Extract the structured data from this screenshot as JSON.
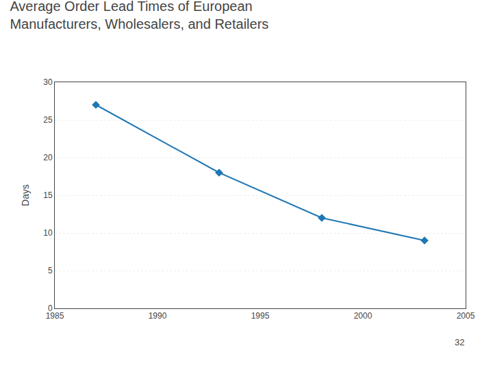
{
  "chart_data": {
    "type": "line",
    "title": "Average Order Lead Times of European\nManufacturers, Wholesalers, and Retailers",
    "ylabel": "Days",
    "x": [
      1987,
      1993,
      1998,
      2003
    ],
    "values": [
      27,
      18,
      12,
      9
    ],
    "xlim": [
      1985,
      2005
    ],
    "ylim": [
      0,
      30
    ],
    "xticks": [
      1985,
      1990,
      1995,
      2000,
      2005
    ],
    "yticks": [
      0,
      5,
      10,
      15,
      20,
      25,
      30
    ],
    "grid": true,
    "marker": "diamond",
    "annotations": [
      "32"
    ]
  }
}
